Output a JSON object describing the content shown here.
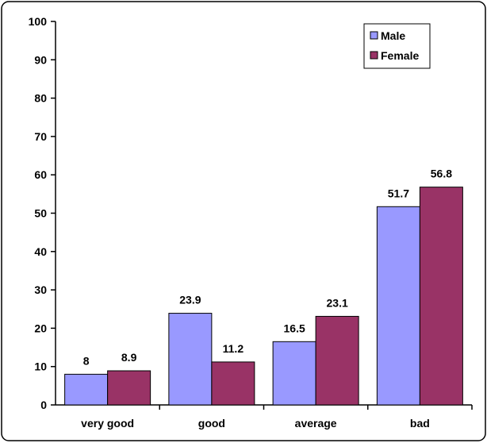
{
  "chart_data": {
    "type": "bar",
    "title": "",
    "xlabel": "",
    "ylabel": "",
    "categories": [
      "very good",
      "good",
      "average",
      "bad"
    ],
    "series": [
      {
        "name": "Male",
        "values": [
          8,
          23.9,
          16.5,
          51.7
        ],
        "color": "#9999ff"
      },
      {
        "name": "Female",
        "values": [
          8.9,
          11.2,
          23.1,
          56.8
        ],
        "color": "#993366"
      }
    ],
    "value_labels": [
      [
        "8",
        "23.9",
        "16.5",
        "51.7"
      ],
      [
        "8.9",
        "11.2",
        "23.1",
        "56.8"
      ]
    ],
    "ylim": [
      0,
      100
    ],
    "yticks": [
      "0",
      "10",
      "20",
      "30",
      "40",
      "50",
      "60",
      "70",
      "80",
      "90",
      "100"
    ],
    "grid": false,
    "legend": {
      "position": "top-right",
      "border": true
    }
  }
}
